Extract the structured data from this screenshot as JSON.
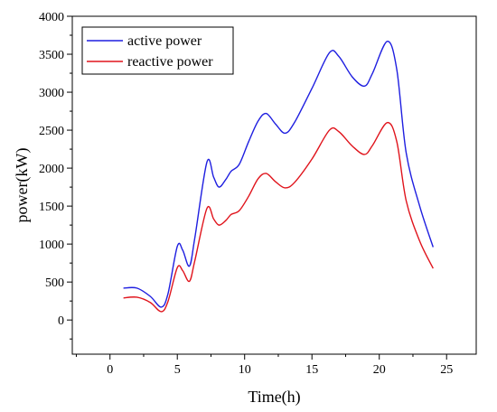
{
  "chart_data": {
    "type": "line",
    "title": "",
    "xlabel": "Time(h)",
    "ylabel": "power(kW)",
    "xlim": [
      -2.8,
      27.2
    ],
    "ylim": [
      -450,
      4000
    ],
    "xticks": [
      0,
      5,
      10,
      15,
      20,
      25
    ],
    "yticks": [
      0,
      500,
      1000,
      1500,
      2000,
      2500,
      3000,
      3500,
      4000
    ],
    "grid": false,
    "legend_position": "top-left",
    "series": [
      {
        "name": "active power",
        "color": "#1f1fe0",
        "x": [
          1,
          2,
          3,
          3.8,
          4.3,
          5,
          5.4,
          5.9,
          6.3,
          7.2,
          7.7,
          8.1,
          8.6,
          9,
          9.6,
          10.3,
          11,
          11.6,
          12.3,
          13,
          13.7,
          15,
          16.3,
          17,
          18,
          18.9,
          19.5,
          20.6,
          21.3,
          22,
          23,
          24
        ],
        "y": [
          420,
          420,
          310,
          170,
          340,
          970,
          920,
          710,
          1080,
          2080,
          1880,
          1750,
          1850,
          1960,
          2050,
          2350,
          2620,
          2720,
          2580,
          2460,
          2600,
          3050,
          3520,
          3470,
          3200,
          3080,
          3250,
          3670,
          3300,
          2200,
          1500,
          960
        ]
      },
      {
        "name": "reactive power",
        "color": "#e0141c",
        "x": [
          1,
          2,
          3,
          3.8,
          4.3,
          5,
          5.4,
          5.9,
          6.3,
          7.2,
          7.7,
          8.1,
          8.6,
          9,
          9.6,
          10.3,
          11,
          11.6,
          12.3,
          13,
          13.7,
          15,
          16.3,
          17,
          18,
          18.9,
          19.5,
          20.6,
          21.3,
          22,
          23,
          24
        ],
        "y": [
          290,
          300,
          230,
          110,
          240,
          690,
          650,
          510,
          780,
          1470,
          1330,
          1250,
          1310,
          1390,
          1440,
          1630,
          1860,
          1930,
          1820,
          1740,
          1810,
          2120,
          2500,
          2480,
          2290,
          2180,
          2300,
          2600,
          2350,
          1570,
          1040,
          680
        ]
      }
    ]
  }
}
